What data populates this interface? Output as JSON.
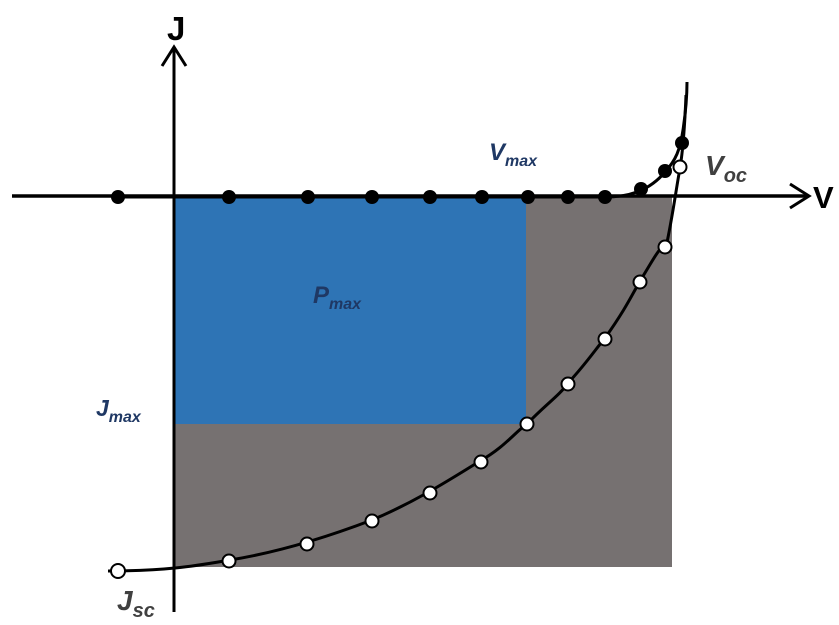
{
  "labels": {
    "y_axis": "J",
    "x_axis": "V",
    "v_max_main": "V",
    "v_max_sub": "max",
    "v_oc_main": "V",
    "v_oc_sub": "oc",
    "p_max_main": "P",
    "p_max_sub": "max",
    "j_max_main": "J",
    "j_max_sub": "max",
    "j_sc_main": "J",
    "j_sc_sub": "sc"
  },
  "colors": {
    "background": "#ffffff",
    "axis": "#000000",
    "pmax_rect": "#2e74b5",
    "iv_rect": "#767171",
    "label_navy": "#1f3864",
    "curve": "#000000",
    "dark_marker": "#000000",
    "light_marker": "#ffffff"
  }
}
